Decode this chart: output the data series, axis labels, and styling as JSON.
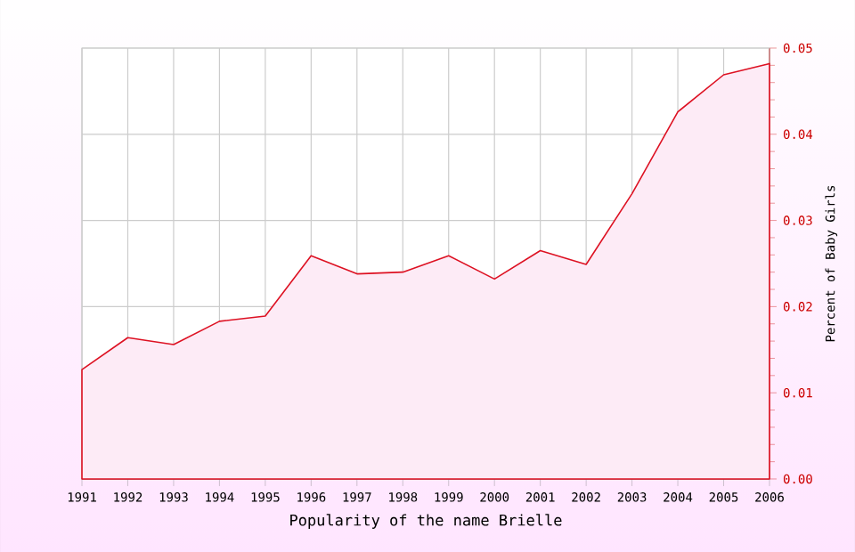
{
  "chart_data": {
    "type": "area",
    "xlabel": "Popularity of the name Brielle",
    "ylabel": "Percent of Baby Girls",
    "x": [
      1991,
      1992,
      1993,
      1994,
      1995,
      1996,
      1997,
      1998,
      1999,
      2000,
      2001,
      2002,
      2003,
      2004,
      2005,
      2006
    ],
    "series": [
      {
        "color": "#dd1122",
        "values": [
          0.0127,
          0.0164,
          0.0156,
          0.0183,
          0.0189,
          0.0259,
          0.0238,
          0.024,
          0.0259,
          0.0232,
          0.0265,
          0.0249,
          0.0331,
          0.0426,
          0.0469,
          0.0482
        ]
      }
    ],
    "xlim": [
      1991,
      2006
    ],
    "xticks": [
      1991,
      1992,
      1993,
      1994,
      1995,
      1996,
      1997,
      1998,
      1999,
      2000,
      2001,
      2002,
      2003,
      2004,
      2005,
      2006
    ],
    "ylim": [
      0,
      0.05
    ],
    "yticks": [
      {
        "value": 0,
        "label": "0.00"
      },
      {
        "value": 0.01,
        "label": "0.01"
      },
      {
        "value": 0.02,
        "label": "0.02"
      },
      {
        "value": 0.03,
        "label": "0.03"
      },
      {
        "value": 0.04,
        "label": "0.04"
      },
      {
        "value": 0.05,
        "label": "0.05"
      }
    ],
    "grid": true
  }
}
